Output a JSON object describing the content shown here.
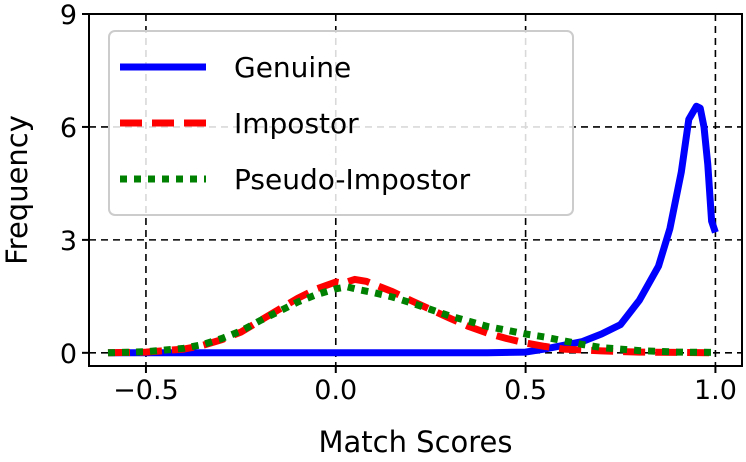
{
  "chart_data": {
    "type": "line",
    "xlabel": "Match Scores",
    "ylabel": "Frequency",
    "xlim": [
      -0.65,
      1.07
    ],
    "ylim": [
      -0.35,
      9
    ],
    "xticks": [
      -0.5,
      0.0,
      0.5,
      1.0
    ],
    "xtick_labels": [
      "−0.5",
      "0.0",
      "0.5",
      "1.0"
    ],
    "yticks": [
      0,
      3,
      6,
      9
    ],
    "ytick_labels": [
      "0",
      "3",
      "6",
      "9"
    ],
    "grid": true,
    "legend_position": "upper-left",
    "series": [
      {
        "name": "Genuine",
        "color": "#0000ff",
        "style": "solid",
        "x": [
          -0.6,
          -0.4,
          -0.2,
          0.0,
          0.2,
          0.4,
          0.5,
          0.55,
          0.6,
          0.65,
          0.7,
          0.75,
          0.8,
          0.85,
          0.88,
          0.91,
          0.93,
          0.95,
          0.96,
          0.97,
          0.98,
          0.99,
          1.0
        ],
        "y": [
          0,
          0,
          0,
          0,
          0,
          0,
          0.02,
          0.1,
          0.2,
          0.3,
          0.5,
          0.75,
          1.4,
          2.3,
          3.3,
          4.8,
          6.2,
          6.55,
          6.5,
          6.0,
          5.0,
          3.5,
          3.2
        ]
      },
      {
        "name": "Impostor",
        "color": "#ff0000",
        "style": "dashed",
        "x": [
          -0.6,
          -0.5,
          -0.4,
          -0.35,
          -0.3,
          -0.25,
          -0.2,
          -0.15,
          -0.1,
          -0.05,
          0.0,
          0.02,
          0.05,
          0.08,
          0.1,
          0.15,
          0.2,
          0.25,
          0.3,
          0.35,
          0.4,
          0.45,
          0.5,
          0.55,
          0.6,
          0.7,
          0.8,
          0.9,
          1.0
        ],
        "y": [
          0.0,
          0.02,
          0.1,
          0.2,
          0.35,
          0.55,
          0.85,
          1.15,
          1.45,
          1.7,
          1.88,
          1.85,
          1.95,
          1.9,
          1.82,
          1.62,
          1.38,
          1.15,
          0.92,
          0.7,
          0.52,
          0.38,
          0.26,
          0.17,
          0.1,
          0.05,
          0.02,
          0.01,
          0.0
        ]
      },
      {
        "name": "Pseudo-Impostor",
        "color": "#008000",
        "style": "dotted",
        "x": [
          -0.6,
          -0.5,
          -0.4,
          -0.35,
          -0.3,
          -0.25,
          -0.2,
          -0.15,
          -0.1,
          -0.05,
          0.0,
          0.03,
          0.06,
          0.1,
          0.15,
          0.2,
          0.25,
          0.3,
          0.35,
          0.4,
          0.45,
          0.5,
          0.55,
          0.6,
          0.65,
          0.7,
          0.8,
          0.9,
          1.0
        ],
        "y": [
          0.0,
          0.03,
          0.12,
          0.22,
          0.38,
          0.58,
          0.85,
          1.1,
          1.35,
          1.55,
          1.7,
          1.75,
          1.68,
          1.6,
          1.48,
          1.32,
          1.15,
          0.98,
          0.84,
          0.7,
          0.6,
          0.5,
          0.42,
          0.32,
          0.22,
          0.14,
          0.06,
          0.02,
          0.01
        ]
      }
    ]
  }
}
